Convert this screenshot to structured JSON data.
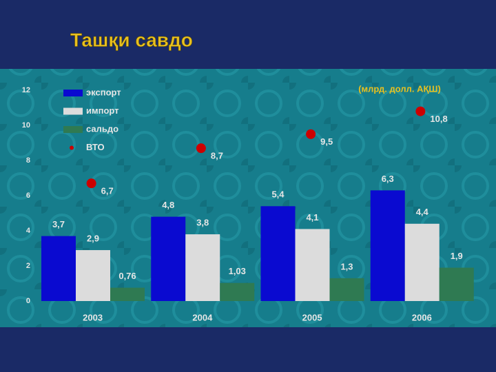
{
  "chart_data": {
    "type": "bar",
    "title": "Ташқи савдо",
    "unit_note": "(млрд. долл. АҚШ)",
    "categories": [
      "2003",
      "2004",
      "2005",
      "2006"
    ],
    "series": [
      {
        "name": "экспорт",
        "color": "#0a0ad0",
        "values": [
          3.7,
          4.8,
          5.4,
          6.3
        ],
        "value_labels": [
          "3,7",
          "4,8",
          "5,4",
          "6,3"
        ]
      },
      {
        "name": "импорт",
        "color": "#dcdcdc",
        "values": [
          2.9,
          3.8,
          4.1,
          4.4
        ],
        "value_labels": [
          "2,9",
          "3,8",
          "4,1",
          "4,4"
        ]
      },
      {
        "name": "сальдо",
        "color": "#2f7a52",
        "values": [
          0.76,
          1.03,
          1.3,
          1.9
        ],
        "value_labels": [
          "0,76",
          "1,03",
          "1,3",
          "1,9"
        ]
      },
      {
        "name": "ВТО",
        "color": "#cc0000",
        "type": "scatter",
        "values": [
          6.7,
          8.7,
          9.5,
          10.8
        ],
        "value_labels": [
          "6,7",
          "8,7",
          "9,5",
          "10,8"
        ]
      }
    ],
    "ylim": [
      0,
      12
    ],
    "yticks": [
      0,
      2,
      4,
      6,
      8,
      10,
      12
    ],
    "grid": false
  }
}
